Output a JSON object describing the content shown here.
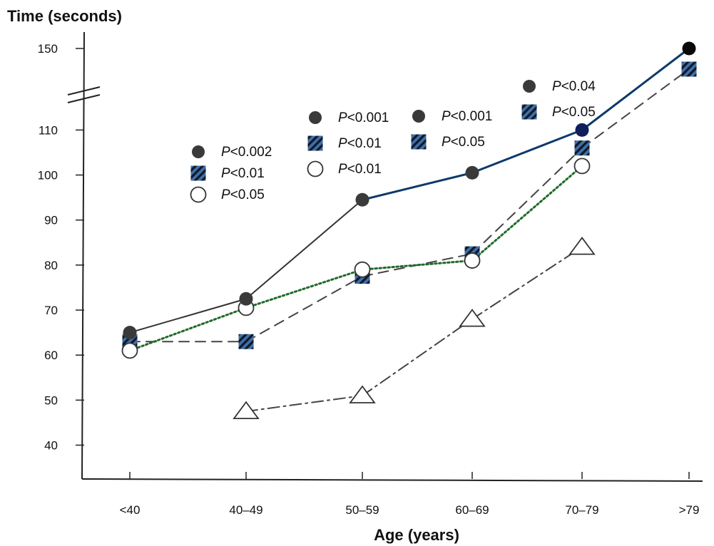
{
  "chart_data": {
    "type": "line",
    "title": "",
    "ylabel": "Time (seconds)",
    "xlabel": "Age (years)",
    "categories": [
      "<40",
      "40–49",
      "50–59",
      "60–69",
      "70–79",
      ">79"
    ],
    "y_ticks": [
      "40",
      "50",
      "60",
      "70",
      "80",
      "90",
      "100",
      "110",
      "150"
    ],
    "y_axis_break": "between 110 and 150",
    "grid": false,
    "legend": "none",
    "series": [
      {
        "marker": "filled-circle",
        "line_style": "solid",
        "color": "#333333",
        "highlight_color": "#0d3a6b",
        "values": [
          65,
          72.5,
          94.5,
          100.5,
          110,
          150
        ]
      },
      {
        "marker": "hatched-square",
        "line_style": "dashed",
        "color": "#444444",
        "values": [
          63,
          63,
          77.5,
          82.5,
          106,
          145
        ]
      },
      {
        "marker": "open-circle",
        "line_style": "dotted",
        "color": "#1f6b2a",
        "values": [
          61,
          70.5,
          79,
          81,
          102,
          null
        ]
      },
      {
        "marker": "open-triangle",
        "line_style": "dash-dot",
        "color": "#444444",
        "values": [
          null,
          47.5,
          51,
          68,
          84,
          null
        ]
      }
    ],
    "annotations": [
      {
        "group": "40–49",
        "entries": [
          {
            "marker": "filled-circle",
            "p": "P",
            "text": "<0.002"
          },
          {
            "marker": "hatched-square",
            "p": "P",
            "text": "<0.01"
          },
          {
            "marker": "open-circle",
            "p": "P",
            "text": "<0.05"
          }
        ]
      },
      {
        "group": "50–59",
        "entries": [
          {
            "marker": "filled-circle",
            "p": "P",
            "text": "<0.001"
          },
          {
            "marker": "hatched-square",
            "p": "P",
            "text": "<0.01"
          },
          {
            "marker": "open-circle",
            "p": "P",
            "text": "<0.01"
          }
        ]
      },
      {
        "group": "60–69",
        "entries": [
          {
            "marker": "filled-circle",
            "p": "P",
            "text": "<0.001"
          },
          {
            "marker": "hatched-square",
            "p": "P",
            "text": "<0.05"
          }
        ]
      },
      {
        "group": "70–79",
        "entries": [
          {
            "marker": "filled-circle",
            "p": "P",
            "text": "<0.04"
          },
          {
            "marker": "hatched-square",
            "p": "P",
            "text": "<0.05"
          }
        ]
      }
    ],
    "colors": {
      "filled_circle": "#3a3a3a",
      "square_blue": "#3f6fa8",
      "square_dark": "#101828",
      "axis": "#222222"
    }
  }
}
